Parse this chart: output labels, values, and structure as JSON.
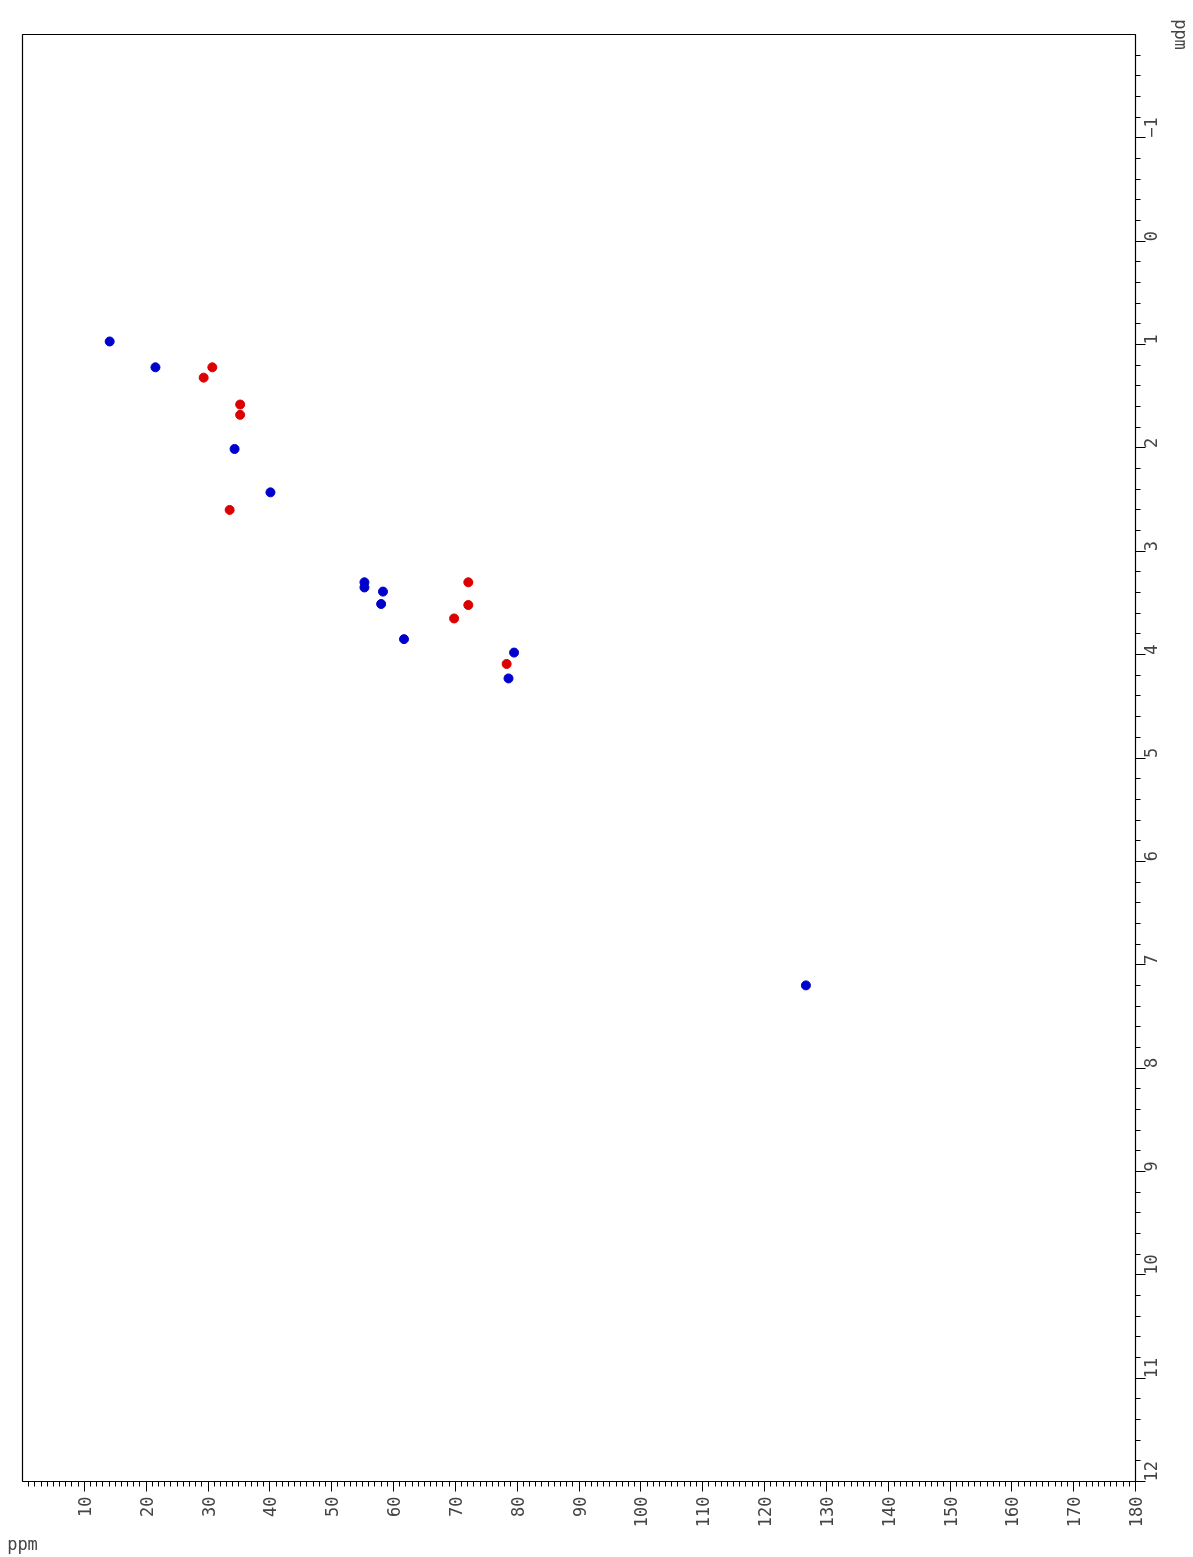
{
  "chart_data": {
    "type": "scatter",
    "xlabel": "ppm",
    "ylabel": "ppm",
    "marker": "circle",
    "grid": false,
    "xlim": [
      0,
      180
    ],
    "xticks": [
      10,
      20,
      30,
      40,
      50,
      60,
      70,
      80,
      90,
      100,
      110,
      120,
      130,
      140,
      150,
      160,
      170,
      180
    ],
    "ylim": [
      12,
      -2
    ],
    "yticks": [
      {
        "value": -1,
        "label": "−1"
      },
      0,
      1,
      2,
      3,
      4,
      5,
      6,
      7,
      8,
      9,
      10,
      11,
      12
    ],
    "series": [
      {
        "color": "#0000cc",
        "x": [
          14.1,
          21.5,
          34.3,
          40.1,
          55.3,
          55.3,
          58.3,
          58.0,
          61.7,
          79.5,
          78.6,
          126.7
        ],
        "values": [
          0.97,
          1.22,
          2.01,
          2.43,
          3.3,
          3.35,
          3.39,
          3.51,
          3.85,
          3.98,
          4.23,
          7.2
        ]
      },
      {
        "color": "#dd0000",
        "x": [
          29.3,
          30.7,
          35.2,
          35.2,
          33.5,
          72.1,
          72.1,
          69.8,
          78.3
        ],
        "values": [
          1.32,
          1.22,
          1.58,
          1.68,
          2.6,
          3.3,
          3.52,
          3.65,
          4.09
        ]
      }
    ]
  }
}
